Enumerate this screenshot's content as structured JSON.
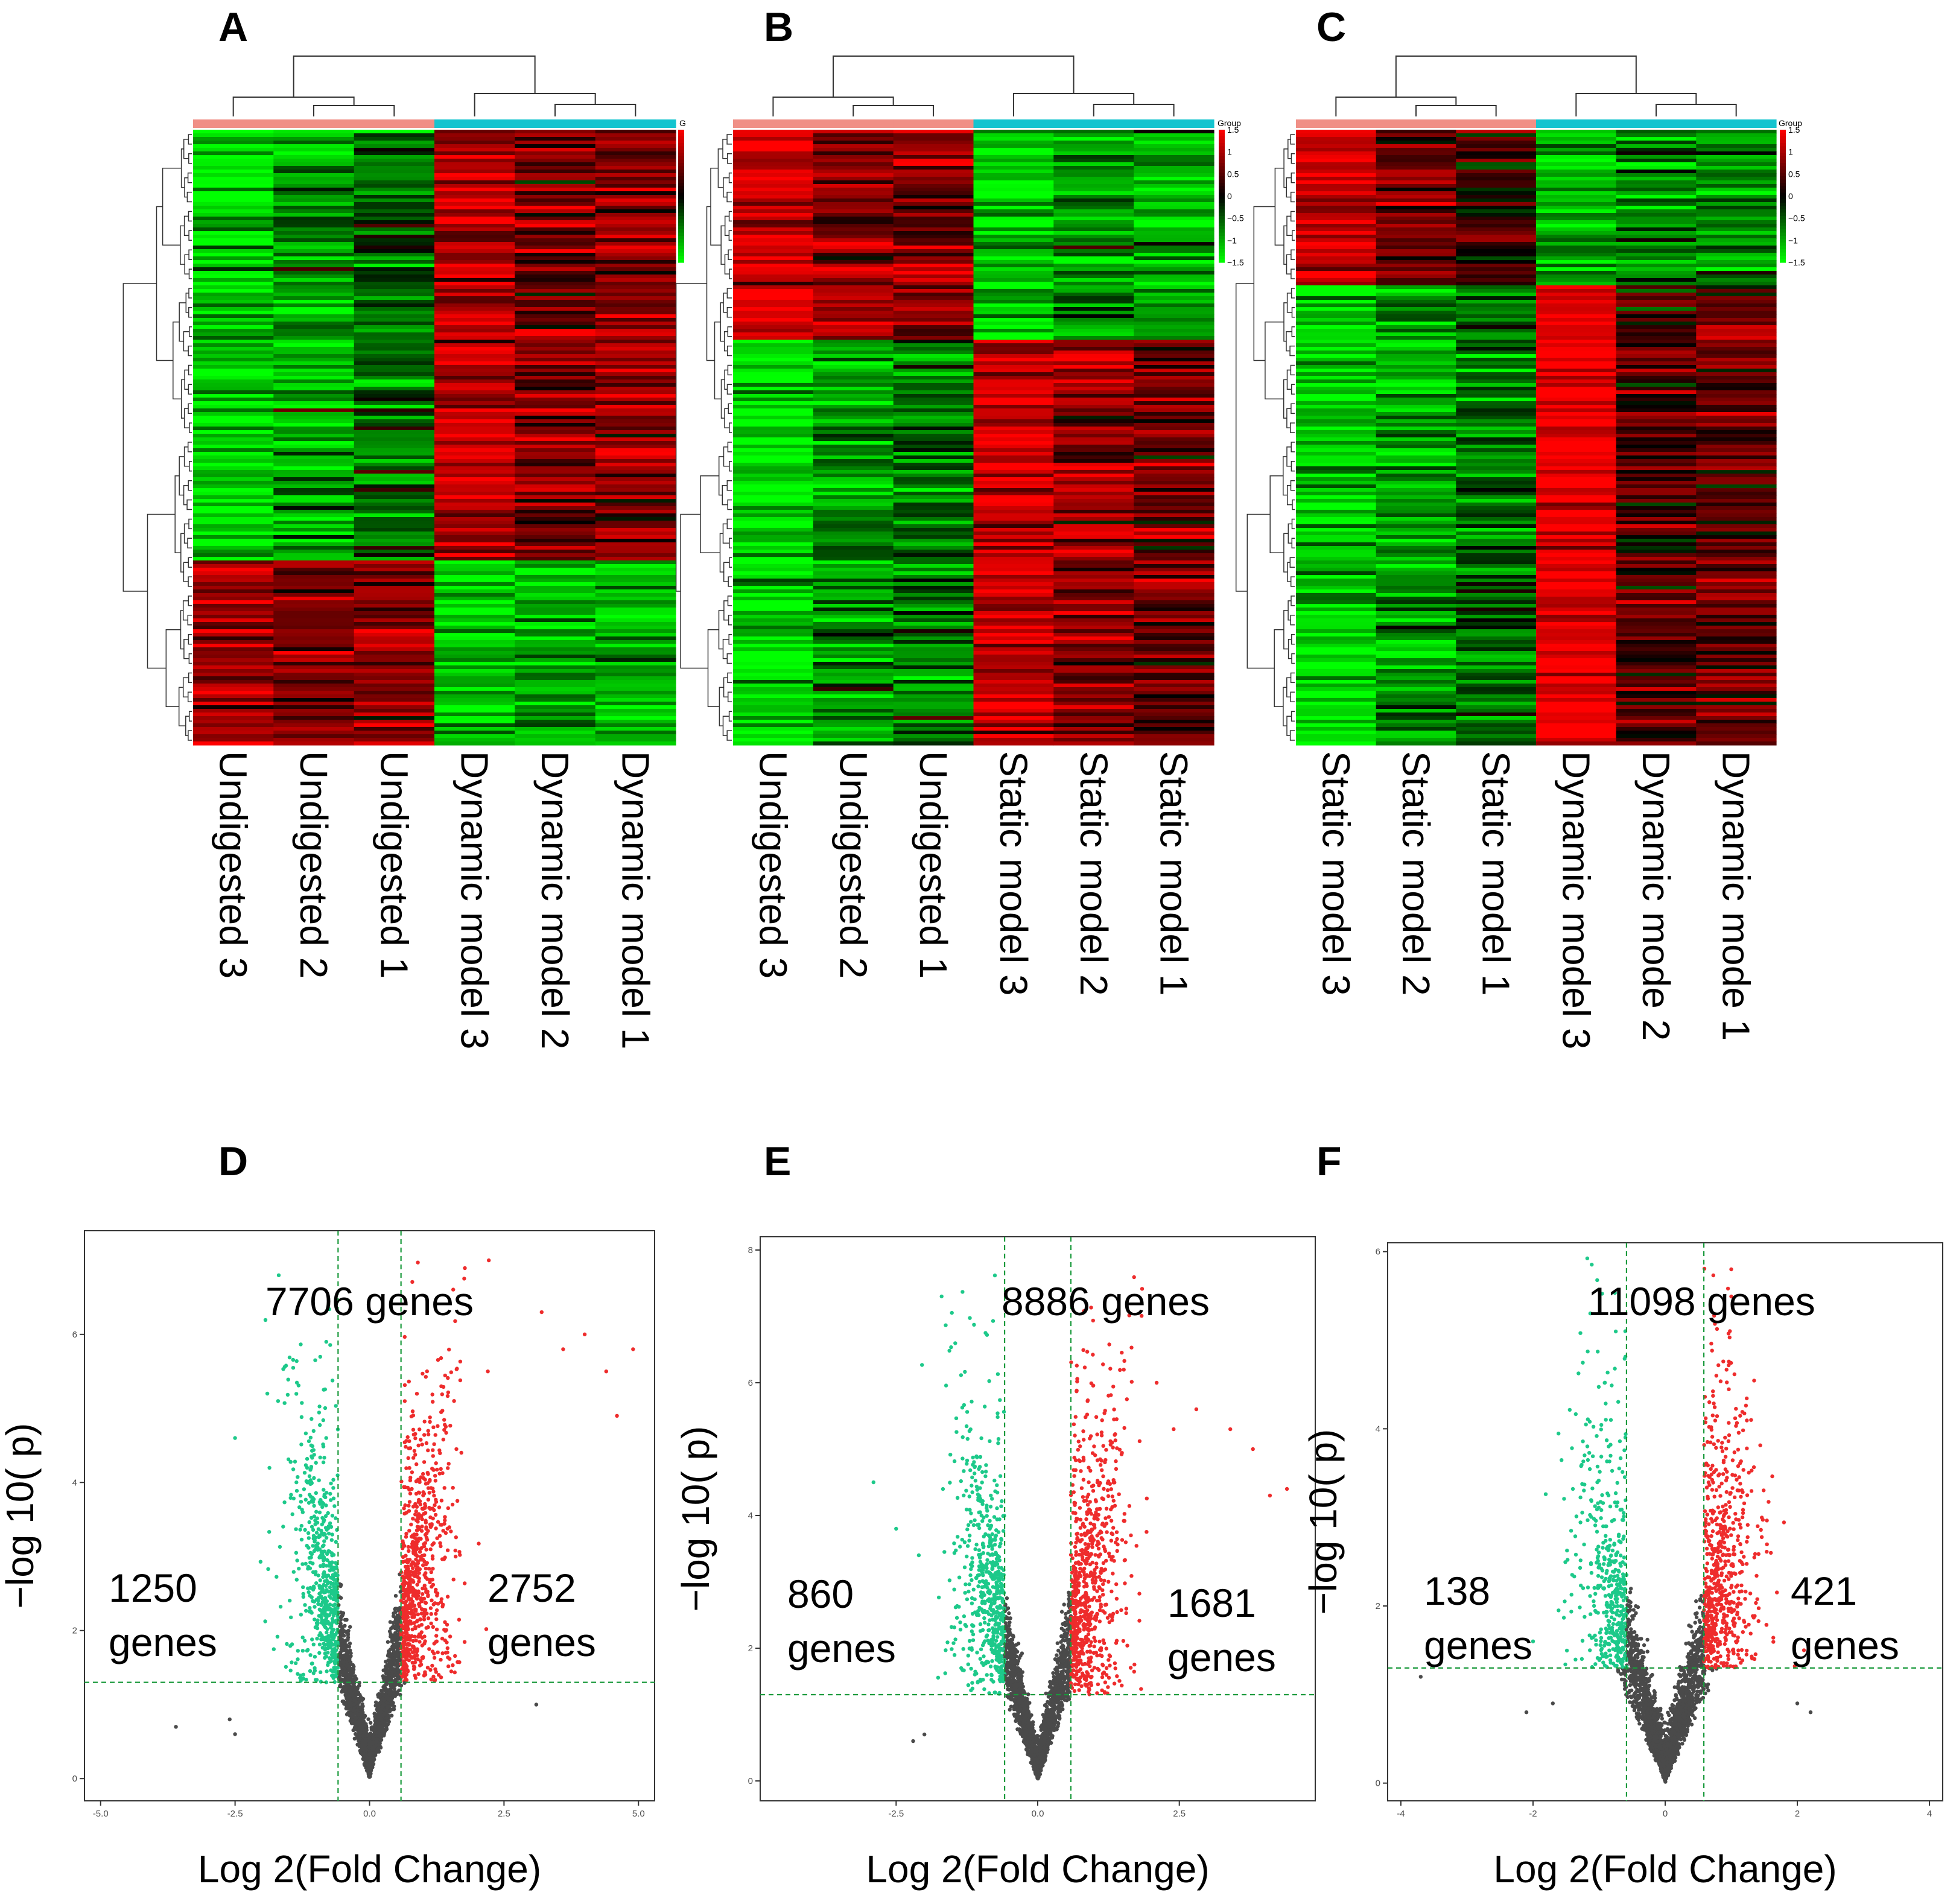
{
  "colors": {
    "heat_low": "#00ff00",
    "heat_mid": "#000000",
    "heat_high": "#ff0000",
    "group_a": "#f08f86",
    "group_b": "#14c4cf",
    "volcano_up": "#ee2c2c",
    "volcano_down": "#1dc98a",
    "volcano_ns": "#4a4a4a",
    "threshold_line": "#1a9a3c"
  },
  "chart_data": [
    {
      "type": "heatmap",
      "panel": "A",
      "legend_title": "G",
      "legend_ticks": [],
      "columns": [
        "Undigested 3",
        "Undigested 2",
        "Undigested 1",
        "Dynamic model 3",
        "Dynamic model 2",
        "Dynamic model 1"
      ],
      "column_groups": [
        "a",
        "a",
        "a",
        "b",
        "b",
        "b"
      ],
      "color_range": [
        -1.5,
        1.5
      ],
      "blocks": [
        {
          "row_fraction": 0.7,
          "values": [
            -1.3,
            -1.0,
            -0.6,
            1.1,
            0.7,
            0.8
          ]
        },
        {
          "row_fraction": 0.3,
          "values": [
            1.0,
            0.8,
            0.9,
            -1.1,
            -1.0,
            -1.0
          ]
        }
      ]
    },
    {
      "type": "heatmap",
      "panel": "B",
      "legend_title": "Group",
      "legend_ticks": [
        "1.5",
        "1",
        "0.5",
        "0",
        "−0.5",
        "−1",
        "−1.5"
      ],
      "columns": [
        "Undigested 3",
        "Undigested 2",
        "Undigested 1",
        "Static model 3",
        "Static model 2",
        "Static model 1"
      ],
      "column_groups": [
        "a",
        "a",
        "a",
        "b",
        "b",
        "b"
      ],
      "color_range": [
        -1.5,
        1.5
      ],
      "blocks": [
        {
          "row_fraction": 0.34,
          "values": [
            1.2,
            0.8,
            0.7,
            -1.2,
            -1.0,
            -1.0
          ]
        },
        {
          "row_fraction": 0.66,
          "values": [
            -1.3,
            -0.9,
            -0.7,
            1.1,
            0.8,
            0.6
          ]
        }
      ]
    },
    {
      "type": "heatmap",
      "panel": "C",
      "legend_title": "Group",
      "legend_ticks": [
        "1.5",
        "1",
        "0.5",
        "0",
        "−0.5",
        "−1",
        "−1.5"
      ],
      "columns": [
        "Static model 3",
        "Static model 2",
        "Static model 1",
        "Dynamic model 3",
        "Dynamic mode 2",
        "Dynamic mode 1"
      ],
      "column_groups": [
        "a",
        "a",
        "a",
        "b",
        "b",
        "b"
      ],
      "color_range": [
        -1.5,
        1.5
      ],
      "blocks": [
        {
          "row_fraction": 0.25,
          "values": [
            1.3,
            0.7,
            0.3,
            -1.0,
            -0.8,
            -0.8
          ]
        },
        {
          "row_fraction": 0.75,
          "values": [
            -1.2,
            -0.9,
            -0.6,
            1.4,
            0.4,
            0.6
          ]
        }
      ]
    },
    {
      "type": "scatter",
      "panel": "D",
      "xlabel": "Log 2(Fold Change)",
      "ylabel": "−log 10( p)",
      "xlim": [
        -5.3,
        5.3
      ],
      "ylim": [
        -0.3,
        7.4
      ],
      "xticks": [
        "-5.0",
        "-2.5",
        "0.0",
        "2.5",
        "5.0"
      ],
      "xtick_values": [
        -5,
        -2.5,
        0,
        2.5,
        5
      ],
      "yticks": [
        "0",
        "2",
        "4",
        "6"
      ],
      "ytick_values": [
        0,
        2,
        4,
        6
      ],
      "fc_threshold": 0.585,
      "p_threshold": 1.3,
      "total_label": "7706 genes",
      "down_count_label": "1250",
      "up_count_label": "2752",
      "genes_word": "genes",
      "spread": 0.55,
      "up_extreme": [
        [
          2.2,
          5.5
        ],
        [
          3.2,
          6.3
        ],
        [
          3.6,
          5.8
        ],
        [
          4.0,
          6.0
        ],
        [
          4.4,
          5.5
        ],
        [
          4.9,
          5.8
        ],
        [
          4.6,
          4.9
        ],
        [
          3.1,
          1.0
        ]
      ],
      "down_extreme": [
        [
          -1.9,
          5.2
        ],
        [
          -1.7,
          5.1
        ],
        [
          -2.5,
          4.6
        ],
        [
          -3.6,
          0.7
        ],
        [
          -2.6,
          0.8
        ],
        [
          -2.5,
          0.6
        ]
      ]
    },
    {
      "type": "scatter",
      "panel": "E",
      "xlabel": "Log 2(Fold Change)",
      "ylabel": "−log 10( p)",
      "xlim": [
        -4.9,
        4.9
      ],
      "ylim": [
        -0.3,
        8.2
      ],
      "xticks": [
        "-2.5",
        "0.0",
        "2.5"
      ],
      "xtick_values": [
        -2.5,
        0,
        2.5
      ],
      "yticks": [
        "0",
        "2",
        "4",
        "6",
        "8"
      ],
      "ytick_values": [
        0,
        2,
        4,
        6,
        8
      ],
      "fc_threshold": 0.585,
      "p_threshold": 1.3,
      "total_label": "8886 genes",
      "down_count_label": "860",
      "up_count_label": "1681",
      "genes_word": "genes",
      "spread": 0.55,
      "up_extreme": [
        [
          2.1,
          6.0
        ],
        [
          2.8,
          5.6
        ],
        [
          3.4,
          5.3
        ],
        [
          3.8,
          5.0
        ],
        [
          4.1,
          4.3
        ],
        [
          4.4,
          4.4
        ],
        [
          2.4,
          5.3
        ]
      ],
      "down_extreme": [
        [
          -2.9,
          4.5
        ],
        [
          -2.5,
          3.8
        ],
        [
          -2.1,
          3.4
        ],
        [
          -2.2,
          0.6
        ],
        [
          -2.0,
          0.7
        ]
      ]
    },
    {
      "type": "scatter",
      "panel": "F",
      "xlabel": "Log 2(Fold Change)",
      "ylabel": "−log 10( p)",
      "xlim": [
        -4.2,
        4.2
      ],
      "ylim": [
        -0.2,
        6.1
      ],
      "xticks": [
        "-4",
        "-2",
        "0",
        "2",
        "4"
      ],
      "xtick_values": [
        -4,
        -2,
        0,
        2,
        4
      ],
      "yticks": [
        "0",
        "2",
        "4",
        "6"
      ],
      "ytick_values": [
        0,
        2,
        4,
        6
      ],
      "fc_threshold": 0.585,
      "p_threshold": 1.3,
      "total_label": "11098 genes",
      "down_count_label": "138",
      "up_count_label": "421",
      "genes_word": "genes",
      "spread": 0.45,
      "up_extreme": [
        [
          1.4,
          2.9
        ],
        [
          1.6,
          2.6
        ],
        [
          1.3,
          4.1
        ],
        [
          1.0,
          5.8
        ],
        [
          2.1,
          1.5
        ],
        [
          2.0,
          0.9
        ],
        [
          2.2,
          0.8
        ]
      ],
      "down_extreme": [
        [
          -3.7,
          1.2
        ],
        [
          -2.1,
          0.8
        ],
        [
          -2.0,
          1.6
        ],
        [
          -1.7,
          0.9
        ]
      ]
    }
  ]
}
